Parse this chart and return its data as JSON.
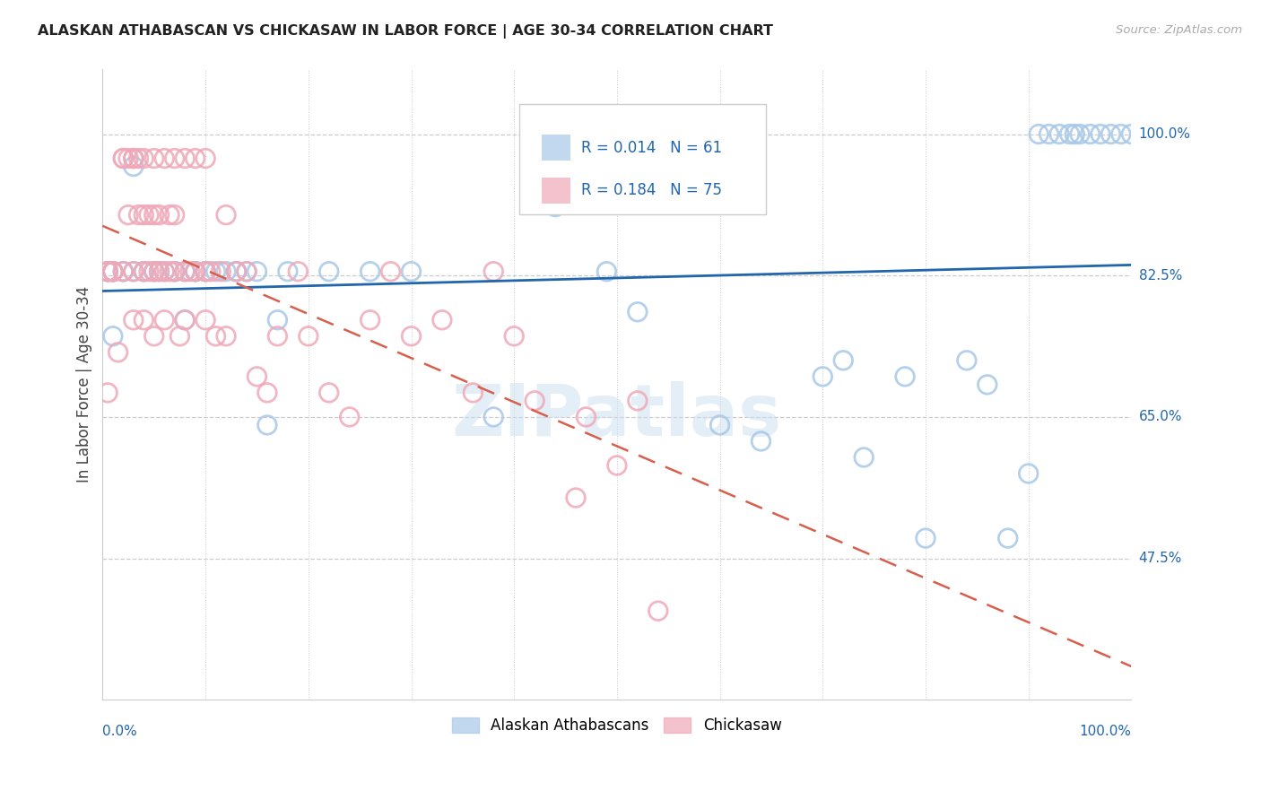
{
  "title": "ALASKAN ATHABASCAN VS CHICKASAW IN LABOR FORCE | AGE 30-34 CORRELATION CHART",
  "source": "Source: ZipAtlas.com",
  "ylabel": "In Labor Force | Age 30-34",
  "xlim": [
    0.0,
    1.0
  ],
  "ylim": [
    0.3,
    1.08
  ],
  "blue_R": "0.014",
  "blue_N": "61",
  "pink_R": "0.184",
  "pink_N": "75",
  "blue_color": "#a8c8e8",
  "pink_color": "#f0a8b8",
  "blue_line_color": "#2166ac",
  "pink_line_color": "#d6604d",
  "watermark": "ZIPatlas",
  "blue_label": "Alaskan Athabascans",
  "pink_label": "Chickasaw",
  "blue_points_x": [
    0.005,
    0.005,
    0.01,
    0.01,
    0.01,
    0.02,
    0.02,
    0.03,
    0.03,
    0.04,
    0.04,
    0.05,
    0.05,
    0.055,
    0.06,
    0.07,
    0.07,
    0.08,
    0.08,
    0.09,
    0.09,
    0.1,
    0.1,
    0.11,
    0.12,
    0.13,
    0.13,
    0.14,
    0.15,
    0.16,
    0.17,
    0.18,
    0.22,
    0.26,
    0.3,
    0.38,
    0.44,
    0.49,
    0.52,
    0.6,
    0.64,
    0.7,
    0.72,
    0.74,
    0.78,
    0.8,
    0.84,
    0.86,
    0.88,
    0.9,
    0.91,
    0.92,
    0.93,
    0.94,
    0.945,
    0.95,
    0.96,
    0.97,
    0.98,
    0.99,
    1.0
  ],
  "blue_points_y": [
    0.83,
    0.83,
    0.83,
    0.83,
    0.75,
    0.83,
    0.83,
    0.83,
    0.96,
    0.83,
    0.83,
    0.83,
    0.83,
    0.83,
    0.83,
    0.83,
    0.83,
    0.83,
    0.77,
    0.83,
    0.83,
    0.83,
    0.83,
    0.83,
    0.83,
    0.83,
    0.83,
    0.83,
    0.83,
    0.64,
    0.77,
    0.83,
    0.83,
    0.83,
    0.83,
    0.65,
    0.91,
    0.83,
    0.78,
    0.64,
    0.62,
    0.7,
    0.72,
    0.6,
    0.7,
    0.5,
    0.72,
    0.69,
    0.5,
    0.58,
    1.0,
    1.0,
    1.0,
    1.0,
    1.0,
    1.0,
    1.0,
    1.0,
    1.0,
    1.0,
    1.0
  ],
  "pink_points_x": [
    0.005,
    0.005,
    0.005,
    0.01,
    0.01,
    0.01,
    0.015,
    0.02,
    0.02,
    0.02,
    0.025,
    0.025,
    0.03,
    0.03,
    0.03,
    0.03,
    0.035,
    0.035,
    0.04,
    0.04,
    0.04,
    0.04,
    0.045,
    0.045,
    0.05,
    0.05,
    0.05,
    0.05,
    0.055,
    0.055,
    0.06,
    0.06,
    0.06,
    0.065,
    0.065,
    0.07,
    0.07,
    0.07,
    0.075,
    0.08,
    0.08,
    0.08,
    0.085,
    0.09,
    0.09,
    0.1,
    0.1,
    0.1,
    0.105,
    0.11,
    0.115,
    0.12,
    0.12,
    0.13,
    0.14,
    0.15,
    0.16,
    0.17,
    0.19,
    0.2,
    0.22,
    0.24,
    0.26,
    0.28,
    0.3,
    0.33,
    0.36,
    0.38,
    0.4,
    0.42,
    0.46,
    0.47,
    0.5,
    0.52,
    0.54
  ],
  "pink_points_y": [
    0.83,
    0.83,
    0.68,
    0.83,
    0.83,
    0.83,
    0.73,
    0.97,
    0.97,
    0.83,
    0.9,
    0.97,
    0.97,
    0.97,
    0.83,
    0.77,
    0.9,
    0.97,
    0.97,
    0.9,
    0.83,
    0.77,
    0.9,
    0.83,
    0.97,
    0.9,
    0.83,
    0.75,
    0.9,
    0.83,
    0.97,
    0.83,
    0.77,
    0.9,
    0.83,
    0.97,
    0.9,
    0.83,
    0.75,
    0.97,
    0.83,
    0.77,
    0.83,
    0.97,
    0.83,
    0.97,
    0.83,
    0.77,
    0.83,
    0.75,
    0.83,
    0.9,
    0.75,
    0.83,
    0.83,
    0.7,
    0.68,
    0.75,
    0.83,
    0.75,
    0.68,
    0.65,
    0.77,
    0.83,
    0.75,
    0.77,
    0.68,
    0.83,
    0.75,
    0.67,
    0.55,
    0.65,
    0.59,
    0.67,
    0.41
  ]
}
